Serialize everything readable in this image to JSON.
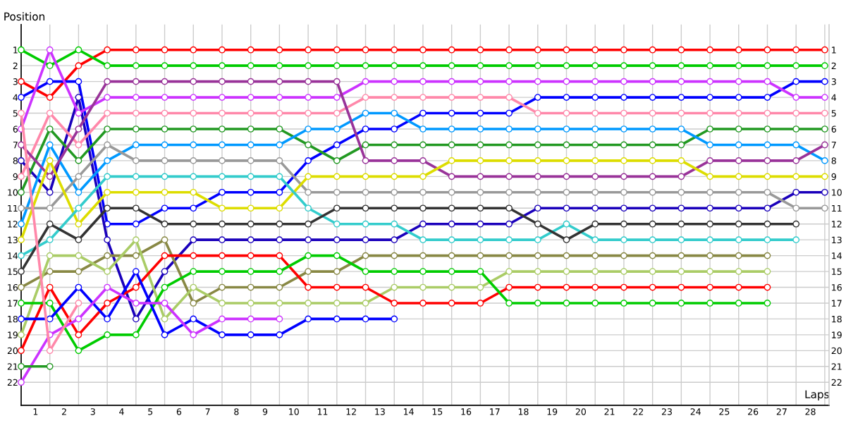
{
  "chart_data": {
    "type": "line",
    "xlabel": "Laps",
    "ylabel": "Position",
    "marker": "circle",
    "line_style": "solid",
    "grid": true,
    "x": [
      0,
      1,
      2,
      3,
      4,
      5,
      6,
      7,
      8,
      9,
      10,
      11,
      12,
      13,
      14,
      15,
      16,
      17,
      18,
      19,
      20,
      21,
      22,
      23,
      24,
      25,
      26,
      27,
      28
    ],
    "xlim": [
      0,
      28.15
    ],
    "ylim": [
      23.45,
      -0.6
    ],
    "y2lim": [
      23.45,
      -0.6
    ],
    "xticks": [
      {
        "value": 0,
        "label": null
      },
      {
        "value": 0.5,
        "label": "1"
      },
      {
        "value": 1,
        "label": null
      },
      {
        "value": 1.5,
        "label": "2"
      },
      {
        "value": 2,
        "label": null
      },
      {
        "value": 2.5,
        "label": "3"
      },
      {
        "value": 3,
        "label": null
      },
      {
        "value": 3.5,
        "label": "4"
      },
      {
        "value": 4,
        "label": null
      },
      {
        "value": 4.5,
        "label": "5"
      },
      {
        "value": 5,
        "label": null
      },
      {
        "value": 5.5,
        "label": "6"
      },
      {
        "value": 6,
        "label": null
      },
      {
        "value": 6.5,
        "label": "7"
      },
      {
        "value": 7,
        "label": null
      },
      {
        "value": 7.5,
        "label": "8"
      },
      {
        "value": 8,
        "label": null
      },
      {
        "value": 8.5,
        "label": "9"
      },
      {
        "value": 9,
        "label": null
      },
      {
        "value": 9.5,
        "label": "10"
      },
      {
        "value": 10,
        "label": null
      },
      {
        "value": 10.5,
        "label": "11"
      },
      {
        "value": 11,
        "label": null
      },
      {
        "value": 11.5,
        "label": "12"
      },
      {
        "value": 12,
        "label": null
      },
      {
        "value": 12.5,
        "label": "13"
      },
      {
        "value": 13,
        "label": null
      },
      {
        "value": 13.5,
        "label": "14"
      },
      {
        "value": 14,
        "label": null
      },
      {
        "value": 14.5,
        "label": "15"
      },
      {
        "value": 15,
        "label": null
      },
      {
        "value": 15.5,
        "label": "16"
      },
      {
        "value": 16,
        "label": null
      },
      {
        "value": 16.5,
        "label": "17"
      },
      {
        "value": 17,
        "label": null
      },
      {
        "value": 17.5,
        "label": "18"
      },
      {
        "value": 18,
        "label": null
      },
      {
        "value": 18.5,
        "label": "19"
      },
      {
        "value": 19,
        "label": null
      },
      {
        "value": 19.5,
        "label": "20"
      },
      {
        "value": 20,
        "label": null
      },
      {
        "value": 20.5,
        "label": "21"
      },
      {
        "value": 21,
        "label": null
      },
      {
        "value": 21.5,
        "label": "22"
      },
      {
        "value": 22,
        "label": null
      },
      {
        "value": 22.5,
        "label": "23"
      },
      {
        "value": 23,
        "label": null
      },
      {
        "value": 23.5,
        "label": "24"
      },
      {
        "value": 24,
        "label": null
      },
      {
        "value": 24.5,
        "label": "25"
      },
      {
        "value": 25,
        "label": null
      },
      {
        "value": 25.5,
        "label": "26"
      },
      {
        "value": 26,
        "label": null
      },
      {
        "value": 26.5,
        "label": "27"
      },
      {
        "value": 27,
        "label": null
      },
      {
        "value": 27.5,
        "label": "28"
      },
      {
        "value": 28,
        "label": null
      }
    ],
    "yticks": [
      1,
      2,
      3,
      4,
      5,
      6,
      7,
      8,
      9,
      10,
      11,
      12,
      13,
      14,
      15,
      16,
      17,
      18,
      19,
      20,
      21,
      22
    ],
    "y2ticks": [
      1,
      2,
      3,
      4,
      5,
      6,
      7,
      8,
      9,
      10,
      11,
      12,
      13,
      14,
      15,
      16,
      17,
      18,
      19,
      20,
      21,
      22
    ],
    "series": [
      {
        "color": "#ff0000",
        "values": [
          3,
          4,
          2,
          1,
          1,
          1,
          1,
          1,
          1,
          1,
          1,
          1,
          1,
          1,
          1,
          1,
          1,
          1,
          1,
          1,
          1,
          1,
          1,
          1,
          1,
          1,
          1,
          1,
          1
        ]
      },
      {
        "color": "#00cc00",
        "values": [
          1,
          2,
          1,
          2,
          2,
          2,
          2,
          2,
          2,
          2,
          2,
          2,
          2,
          2,
          2,
          2,
          2,
          2,
          2,
          2,
          2,
          2,
          2,
          2,
          2,
          2,
          2,
          2,
          2
        ]
      },
      {
        "color": "#0000ff",
        "values": [
          4,
          3,
          3,
          12,
          12,
          11,
          11,
          10,
          10,
          10,
          8,
          7,
          6,
          6,
          5,
          5,
          5,
          5,
          4,
          4,
          4,
          4,
          4,
          4,
          4,
          4,
          4,
          3,
          3
        ]
      },
      {
        "color": "#1a00bb",
        "values": [
          8,
          10,
          4,
          13,
          18,
          15,
          13,
          13,
          13,
          13,
          13,
          13,
          13,
          13,
          12,
          12,
          12,
          12,
          11,
          11,
          11,
          11,
          11,
          11,
          11,
          11,
          11,
          10,
          10
        ]
      },
      {
        "color": "#cc33ff",
        "values": [
          6,
          1,
          5,
          4,
          4,
          4,
          4,
          4,
          4,
          4,
          4,
          4,
          3,
          3,
          3,
          3,
          3,
          3,
          3,
          3,
          3,
          3,
          3,
          3,
          3,
          3,
          3,
          4,
          4
        ]
      },
      {
        "color": "#ff88aa",
        "values": [
          9,
          5,
          7,
          5,
          5,
          5,
          5,
          5,
          5,
          5,
          5,
          5,
          4,
          4,
          4,
          4,
          4,
          4,
          5,
          5,
          5,
          5,
          5,
          5,
          5,
          5,
          5,
          5,
          5
        ]
      },
      {
        "color": "#229922",
        "values": [
          10,
          6,
          8,
          6,
          6,
          6,
          6,
          6,
          6,
          6,
          7,
          8,
          7,
          7,
          7,
          7,
          7,
          7,
          7,
          7,
          7,
          7,
          7,
          7,
          6,
          6,
          6,
          6,
          6
        ]
      },
      {
        "color": "#0099ff",
        "values": [
          12,
          7,
          10,
          8,
          7,
          7,
          7,
          7,
          7,
          7,
          6,
          6,
          5,
          5,
          6,
          6,
          6,
          6,
          6,
          6,
          6,
          6,
          6,
          6,
          7,
          7,
          7,
          7,
          8
        ]
      },
      {
        "color": "#993399",
        "values": [
          7,
          9,
          6,
          3,
          3,
          3,
          3,
          3,
          3,
          3,
          3,
          3,
          8,
          8,
          8,
          9,
          9,
          9,
          9,
          9,
          9,
          9,
          9,
          9,
          8,
          8,
          8,
          8,
          7
        ]
      },
      {
        "color": "#999999",
        "values": [
          11,
          11,
          9,
          7,
          8,
          8,
          8,
          8,
          8,
          8,
          10,
          10,
          10,
          10,
          10,
          10,
          10,
          10,
          10,
          10,
          10,
          10,
          10,
          10,
          10,
          10,
          10,
          11,
          11
        ]
      },
      {
        "color": "#dddd00",
        "values": [
          13,
          8,
          12,
          10,
          10,
          10,
          10,
          11,
          11,
          11,
          9,
          9,
          9,
          9,
          9,
          8,
          8,
          8,
          8,
          8,
          8,
          8,
          8,
          8,
          9,
          9,
          9,
          9,
          9
        ]
      },
      {
        "color": "#33cccc",
        "values": [
          14,
          13,
          11,
          9,
          9,
          9,
          9,
          9,
          9,
          9,
          11,
          12,
          12,
          12,
          13,
          13,
          13,
          13,
          13,
          12,
          13,
          13,
          13,
          13,
          13,
          13,
          13,
          13,
          null
        ]
      },
      {
        "color": "#333333",
        "values": [
          15,
          12,
          13,
          11,
          11,
          12,
          12,
          12,
          12,
          12,
          12,
          11,
          11,
          11,
          11,
          11,
          11,
          11,
          12,
          13,
          12,
          12,
          12,
          12,
          12,
          12,
          12,
          12,
          null
        ]
      },
      {
        "color": "#888844",
        "values": [
          16,
          15,
          15,
          14,
          14,
          13,
          17,
          16,
          16,
          16,
          15,
          15,
          14,
          14,
          14,
          14,
          14,
          14,
          14,
          14,
          14,
          14,
          14,
          14,
          14,
          14,
          14,
          null,
          null
        ]
      },
      {
        "color": "#aacc66",
        "values": [
          19,
          14,
          14,
          15,
          13,
          18,
          16,
          17,
          17,
          17,
          17,
          17,
          17,
          16,
          16,
          16,
          16,
          15,
          15,
          15,
          15,
          15,
          15,
          15,
          15,
          15,
          15,
          null,
          null
        ]
      },
      {
        "color": "#ff0000",
        "values": [
          20,
          16,
          19,
          17,
          16,
          14,
          14,
          14,
          14,
          14,
          16,
          16,
          16,
          17,
          17,
          17,
          17,
          16,
          16,
          16,
          16,
          16,
          16,
          16,
          16,
          16,
          16,
          null,
          null
        ]
      },
      {
        "color": "#00cc00",
        "values": [
          17,
          17,
          20,
          19,
          19,
          16,
          15,
          15,
          15,
          15,
          14,
          14,
          15,
          15,
          15,
          15,
          15,
          17,
          17,
          17,
          17,
          17,
          17,
          17,
          17,
          17,
          17,
          null,
          null
        ]
      },
      {
        "color": "#0000ff",
        "values": [
          18,
          18,
          16,
          18,
          15,
          19,
          18,
          19,
          19,
          19,
          18,
          18,
          18,
          18,
          null,
          null,
          null,
          null,
          null,
          null,
          null,
          null,
          null,
          null,
          null,
          null,
          null,
          null,
          null
        ]
      },
      {
        "color": "#cc33ff",
        "values": [
          22,
          19,
          18,
          16,
          17,
          17,
          19,
          18,
          18,
          18,
          null,
          null,
          null,
          null,
          null,
          null,
          null,
          null,
          null,
          null,
          null,
          null,
          null,
          null,
          null,
          null,
          null,
          null,
          null
        ]
      },
      {
        "color": "#ff88aa",
        "values": [
          5,
          20,
          17,
          null,
          null,
          null,
          null,
          null,
          null,
          null,
          null,
          null,
          null,
          null,
          null,
          null,
          null,
          null,
          null,
          null,
          null,
          null,
          null,
          null,
          null,
          null,
          null,
          null,
          null
        ]
      },
      {
        "color": "#229922",
        "values": [
          21,
          21,
          null,
          null,
          null,
          null,
          null,
          null,
          null,
          null,
          null,
          null,
          null,
          null,
          null,
          null,
          null,
          null,
          null,
          null,
          null,
          null,
          null,
          null,
          null,
          null,
          null,
          null,
          null
        ]
      }
    ]
  }
}
